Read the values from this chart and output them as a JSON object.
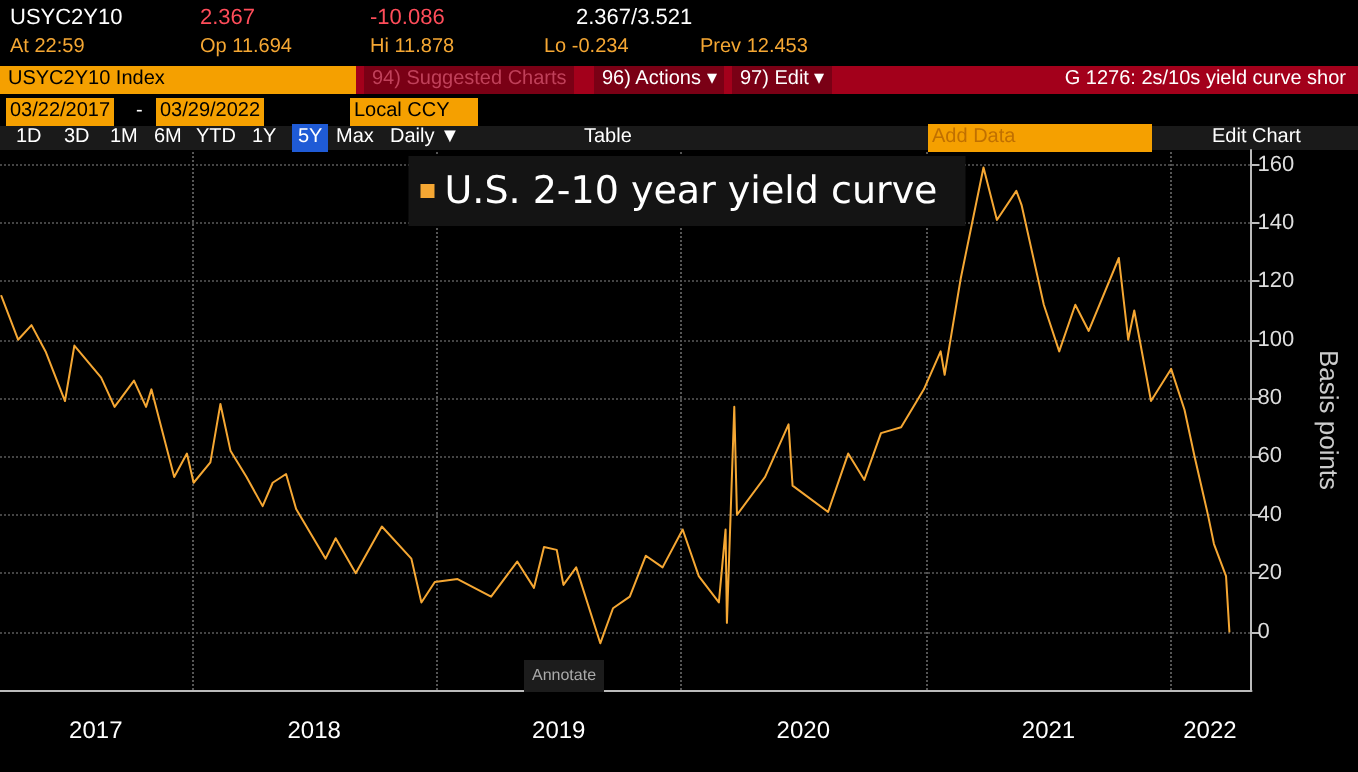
{
  "chart_data": {
    "type": "line",
    "ylabel": "Basis points",
    "x": [
      "2017-03-22",
      "2017-04-16",
      "2017-05-06",
      "2017-05-27",
      "2017-06-25",
      "2017-07-09",
      "2017-08-18",
      "2017-09-07",
      "2017-10-06",
      "2017-10-24",
      "2017-11-01",
      "2017-12-05",
      "2017-12-24",
      "2018-01-03",
      "2018-01-28",
      "2018-02-12",
      "2018-02-27",
      "2018-03-23",
      "2018-04-16",
      "2018-05-01",
      "2018-05-21",
      "2018-06-05",
      "2018-07-19",
      "2018-08-03",
      "2018-09-02",
      "2018-10-11",
      "2018-11-24",
      "2018-12-09",
      "2018-12-29",
      "2019-02-01",
      "2019-03-23",
      "2019-05-01",
      "2019-05-26",
      "2019-06-10",
      "2019-06-29",
      "2019-07-09",
      "2019-07-28",
      "2019-09-02",
      "2019-09-21",
      "2019-10-16",
      "2019-11-09",
      "2019-12-04",
      "2020-01-03",
      "2020-01-27",
      "2020-02-26",
      "2020-03-07",
      "2020-03-09",
      "2020-03-20",
      "2020-03-24",
      "2020-05-05",
      "2020-06-09",
      "2020-06-15",
      "2020-08-07",
      "2020-09-06",
      "2020-09-30",
      "2020-10-25",
      "2020-11-24",
      "2020-12-28",
      "2021-01-22",
      "2021-01-28",
      "2021-02-21",
      "2021-03-27",
      "2021-04-16",
      "2021-05-15",
      "2021-05-23",
      "2021-06-25",
      "2021-07-18",
      "2021-08-11",
      "2021-08-31",
      "2021-10-15",
      "2021-10-29",
      "2021-11-07",
      "2021-12-02",
      "2022-01-01",
      "2022-01-21",
      "2022-02-05",
      "2022-02-25",
      "2022-03-06",
      "2022-03-24",
      "2022-03-29"
    ],
    "series": [
      {
        "name": "U.S. 2-10 year yield curve",
        "color": "#f5a733",
        "values": [
          115,
          100,
          105,
          96,
          79,
          98,
          87,
          77,
          86,
          77,
          83,
          53,
          61,
          51,
          58,
          78,
          62,
          53,
          43,
          51,
          54,
          42,
          25,
          32,
          20,
          36,
          25,
          10,
          17,
          18,
          12,
          24,
          15,
          29,
          28,
          16,
          22,
          -4,
          8,
          12,
          26,
          22,
          35,
          19,
          10,
          35,
          3,
          77,
          40,
          53,
          71,
          50,
          41,
          61,
          52,
          68,
          70,
          83,
          96,
          88,
          121,
          159,
          141,
          151,
          146,
          112,
          96,
          112,
          103,
          128,
          100,
          110,
          79,
          90,
          76,
          60,
          40,
          30,
          19,
          0
        ]
      }
    ],
    "xlim": [
      "2017-03-20",
      "2022-05-01"
    ],
    "xticks": [
      {
        "value": "2017-08-10",
        "label": "2017"
      },
      {
        "value": "2018-01-01",
        "label": null
      },
      {
        "value": "2018-07-02",
        "label": "2018"
      },
      {
        "value": "2019-01-01",
        "label": null
      },
      {
        "value": "2019-07-02",
        "label": "2019"
      },
      {
        "value": "2020-01-01",
        "label": null
      },
      {
        "value": "2020-07-01",
        "label": "2020"
      },
      {
        "value": "2021-01-01",
        "label": null
      },
      {
        "value": "2021-07-02",
        "label": "2021"
      },
      {
        "value": "2022-01-01",
        "label": null
      },
      {
        "value": "2022-02-28",
        "label": "2022"
      }
    ],
    "ylim": [
      -20,
      165
    ],
    "yticks": [
      0,
      20,
      40,
      60,
      80,
      100,
      120,
      140,
      160
    ],
    "grid": true,
    "legend": "top",
    "marker": "none",
    "line_style": "solid",
    "annotations": [
      "USYC2Y10",
      "2.367",
      "-10.086",
      "2.367/3.521",
      "At 22:59",
      "Op 11.694",
      "Hi 11.878",
      "Lo -0.234",
      "Prev 12.453",
      "USYC2Y10 Index",
      "94) Suggested Charts",
      "96) Actions ▾",
      "97) Edit ▾",
      "G 1276: 2s/10s yield curve shor",
      "03/22/2017",
      "-",
      "03/29/2022",
      "Local CCY",
      "1D",
      "3D",
      "1M",
      "6M",
      "YTD",
      "1Y",
      "5Y",
      "Max",
      "Daily ▼",
      "Table",
      "Add Data",
      "Edit Chart",
      "Annotate"
    ]
  }
}
